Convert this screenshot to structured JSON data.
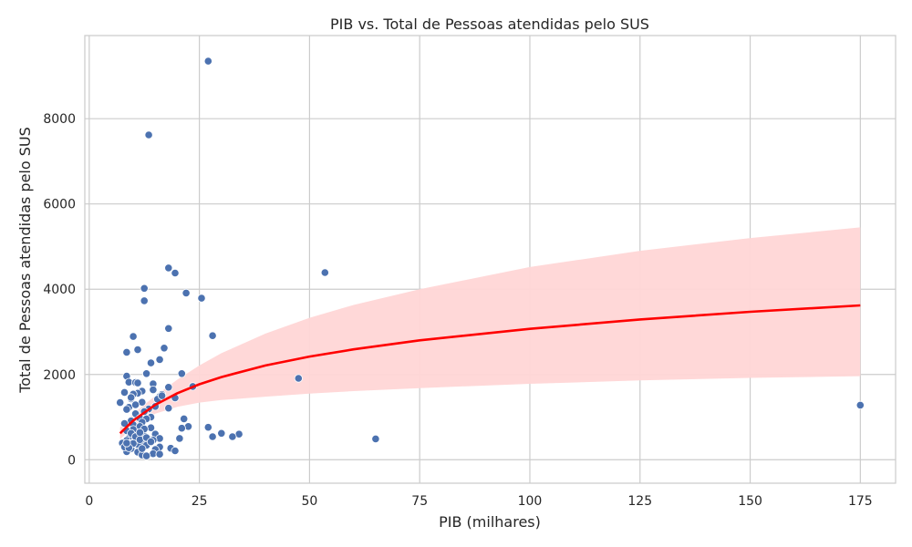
{
  "chart_data": {
    "type": "scatter",
    "title": "PIB vs. Total de Pessoas atendidas pelo SUS",
    "xlabel": "PIB (milhares)",
    "ylabel": "Total de Pessoas atendidas pelo SUS",
    "xlim": [
      -1,
      183
    ],
    "ylim": [
      -550,
      9950
    ],
    "xticks": [
      0,
      25,
      50,
      75,
      100,
      125,
      150,
      175
    ],
    "yticks": [
      0,
      2000,
      4000,
      6000,
      8000
    ],
    "grid": true,
    "colors": {
      "points": "#4c72b0",
      "points_edge": "#ffffff",
      "trend": "#ff0000",
      "band": "#ffd6d6",
      "grid": "#cccccc",
      "spine": "#cccccc"
    },
    "series": [
      {
        "kind": "points",
        "x": [
          27,
          13.5,
          18,
          19.5,
          12.5,
          12.5,
          22,
          25.5,
          53.5,
          18,
          10,
          28,
          8.5,
          11,
          17,
          16,
          14,
          13,
          21,
          8.5,
          47.5,
          9,
          10.5,
          11,
          14.5,
          12,
          14.5,
          8,
          11,
          10,
          18,
          16.5,
          23.5,
          19.5,
          16,
          15.5,
          9.5,
          12,
          18,
          13.5,
          7,
          15,
          9,
          8.5,
          12.5,
          10.5,
          14,
          11.5,
          13,
          9.5,
          12,
          8,
          21.5,
          10,
          11.5,
          14,
          27,
          22.5,
          21,
          10,
          30,
          34,
          8.5,
          15,
          11,
          12.5,
          32.5,
          28,
          9,
          16,
          20.5,
          65,
          13.5,
          10.5,
          8.5,
          14.5,
          12,
          7.5,
          9,
          11,
          13,
          18.5,
          16,
          9.5,
          15,
          19.5,
          11,
          8.5,
          14.5,
          16,
          12,
          13,
          9.5,
          10.5,
          11.5,
          10,
          175,
          8,
          9,
          12,
          13,
          14,
          8.5,
          16.5,
          9.5,
          10.5,
          12.5,
          11.5
        ],
        "y": [
          9350,
          7620,
          4500,
          4380,
          4020,
          3730,
          3910,
          3790,
          4390,
          3080,
          2890,
          2910,
          2520,
          2580,
          2620,
          2350,
          2270,
          2020,
          2020,
          1960,
          1910,
          1820,
          1810,
          1800,
          1780,
          1610,
          1640,
          1580,
          1560,
          1540,
          1700,
          1530,
          1720,
          1450,
          1480,
          1420,
          1430,
          1350,
          1210,
          1190,
          1340,
          1250,
          1230,
          1180,
          1130,
          1080,
          1000,
          970,
          960,
          910,
          880,
          850,
          960,
          820,
          780,
          750,
          760,
          780,
          740,
          710,
          620,
          600,
          680,
          600,
          570,
          560,
          540,
          540,
          500,
          500,
          500,
          490,
          480,
          470,
          450,
          460,
          420,
          390,
          380,
          360,
          340,
          270,
          300,
          260,
          240,
          210,
          180,
          190,
          140,
          130,
          110,
          90,
          620,
          540,
          470,
          380,
          1280,
          300,
          280,
          260,
          520,
          420,
          390,
          1500,
          1460,
          1290,
          720,
          640
        ],
        "marker": "circle"
      },
      {
        "kind": "trend",
        "name": "",
        "x": [
          7,
          10,
          15,
          20,
          25,
          30,
          40,
          50,
          60,
          75,
          100,
          125,
          150,
          175
        ],
        "y": [
          620,
          920,
          1290,
          1560,
          1770,
          1940,
          2210,
          2420,
          2590,
          2800,
          3070,
          3290,
          3470,
          3620
        ]
      },
      {
        "kind": "band",
        "x": [
          7,
          10,
          15,
          20,
          25,
          30,
          40,
          50,
          60,
          75,
          100,
          125,
          150,
          175
        ],
        "lower": [
          480,
          760,
          1080,
          1240,
          1340,
          1400,
          1480,
          1550,
          1610,
          1680,
          1780,
          1860,
          1920,
          1960
        ],
        "upper": [
          760,
          1080,
          1500,
          1880,
          2210,
          2500,
          2960,
          3330,
          3630,
          4000,
          4520,
          4900,
          5200,
          5450
        ]
      }
    ]
  }
}
